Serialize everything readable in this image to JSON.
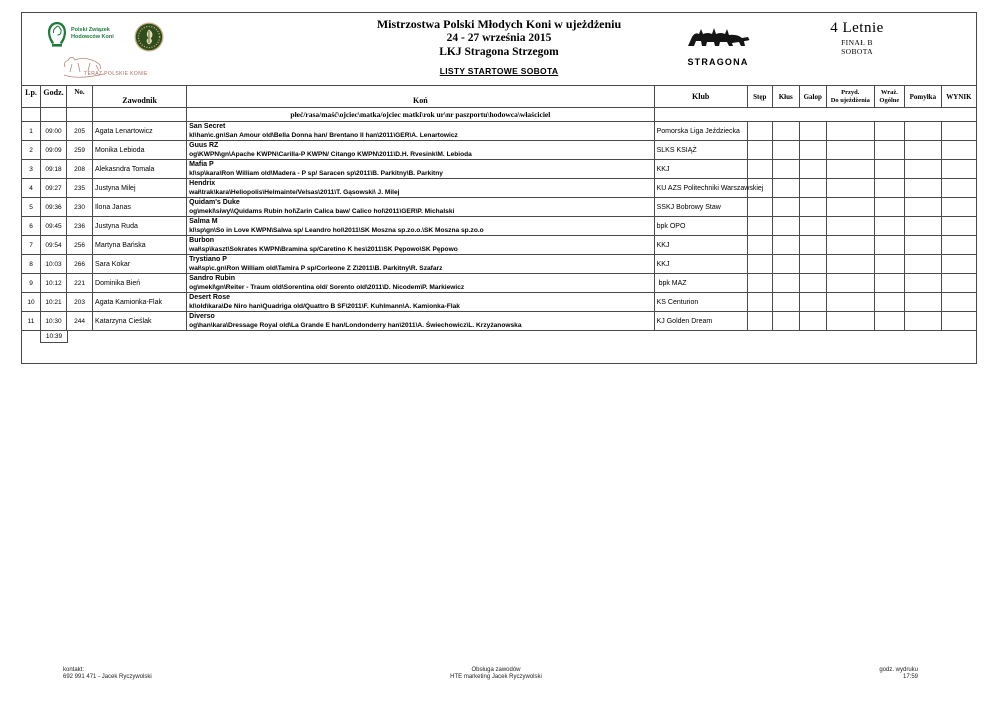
{
  "header": {
    "pzhk_line1": "Polski Związek",
    "pzhk_line2": "Hodowców Koni",
    "teraz_text": "TERAZ POLSKIE KONIE",
    "title1": "Mistrzostwa Polski Młodych Koni w ujeżdżeniu",
    "title2": "24 - 27 września 2015",
    "title3": "LKJ Stragona Strzegom",
    "subtitle": "LISTY STARTOWE SOBOTA",
    "stragona_label": "STRAGONA",
    "class_name": "4 Letnie",
    "class_final": "FINAŁ B",
    "class_day": "SOBOTA"
  },
  "icons": {
    "pzhk_logo": "pzhk-horseshoe-horse-head-logo",
    "seal_logo": "round-green-wheat-seal-logo",
    "teraz_sketch": "jumping-horse-outline-sketch",
    "stragona_logo": "stragona-horses-silhouette-logo"
  },
  "colors": {
    "border": "#4a4a4a",
    "logo_green": "#1e7b3c",
    "seal_green": "#2f4d1d",
    "seal_tan": "#c9b183",
    "sketch_brown": "#b5897b",
    "silhouette_black": "#151515"
  },
  "table": {
    "col_lp": "Lp.",
    "col_time": "Godz.",
    "col_nr": "No.",
    "col_rider": "Zawodnik",
    "col_horse": "Koń",
    "col_club": "Klub",
    "col_step": "Stęp",
    "col_klus": "Kłus",
    "col_galop": "Galop",
    "col_przyd1": "Przyd.",
    "col_przyd2": "Do ujeżdżenia",
    "col_wraz1": "Wraż.",
    "col_wraz2": "Ogólne",
    "col_pomylka": "Pomyłka",
    "col_wynik": "WYNIK",
    "horse_subheader": "płeć/rasa/maść\\ojciec\\matka/ojciec matki\\rok ur\\nr paszportu\\hodowca\\właściciel",
    "end_time": "10:39",
    "rows": [
      {
        "lp": "1",
        "time": "09:00",
        "nr": "205",
        "rider": "Agata Lenartowicz",
        "horse": "San Secret",
        "details": "kl\\han\\c.gn\\San Amour old\\Bella Donna han/ Brentano II han\\2011\\GER\\A. Lenartowicz",
        "club": "Pomorska Liga Jeździecka"
      },
      {
        "lp": "2",
        "time": "09:09",
        "nr": "259",
        "rider": "Monika Lebioda",
        "horse": "Guus RZ",
        "details": "og\\KWPN\\gn\\Apache KWPN\\Carilla-P KWPN/ Citango KWPN\\2011\\D.H. Rvesink\\M. Lebioda",
        "club": "SLKS KSIĄŻ"
      },
      {
        "lp": "3",
        "time": "09:18",
        "nr": "208",
        "rider": "Alekasndra Tomala",
        "horse": "Mafia P",
        "details": "kl\\sp\\kara\\Ron William old\\Madera - P sp/ Saracen sp\\2011\\B. Parkitny\\B. Parkitny",
        "club": "KKJ"
      },
      {
        "lp": "4",
        "time": "09:27",
        "nr": "235",
        "rider": "Justyna Milej",
        "horse": "Hendrix",
        "details": "wał\\trak\\kara\\Heliopolis\\Helmainte/Velsas\\2011\\T. Gąsowski\\ J. Milej",
        "club": "KU AZS Politechniki Warszawskiej"
      },
      {
        "lp": "5",
        "time": "09:36",
        "nr": "230",
        "rider": "Ilona Janas",
        "horse": "Quidam's Duke",
        "details": "og\\mekl\\siwy\\\\Quidams Rubin hol\\Zarin Calica baw/ Calico hol\\2011\\GER\\P. Michalski",
        "club": "SSKJ Bobrowy Staw"
      },
      {
        "lp": "6",
        "time": "09:45",
        "nr": "236",
        "rider": "Justyna Ruda",
        "horse": "Salma M",
        "details": "kl\\sp\\gn\\So in Love KWPN\\Salwa sp/ Leandro hol\\2011\\SK Moszna sp.zo.o.\\SK Moszna sp.zo.o",
        "club": "bpk OPO"
      },
      {
        "lp": "7",
        "time": "09:54",
        "nr": "256",
        "rider": "Martyna Bańska",
        "horse": "Burbon",
        "details": "wał\\sp\\kaszt\\Sokrates KWPN\\Bramina sp/Caretino K hes\\2011\\SK Pępowo\\SK Pępowo",
        "club": "KKJ"
      },
      {
        "lp": "8",
        "time": "10:03",
        "nr": "266",
        "rider": "Sara Kokar",
        "horse": "Trystiano P",
        "details": "wał\\sp\\c.gn\\Ron William old\\Tamira P sp/Corleone Z Z\\2011\\B. Parkitny\\R. Szafarz",
        "club": "KKJ"
      },
      {
        "lp": "9",
        "time": "10:12",
        "nr": "221",
        "rider": "Dominika Bień",
        "horse": "Sandro Rubin",
        "details": "og\\mekl\\gn\\Reiter - Traum old\\Sorentina old/ Sorento old\\2011\\D. Nicodem\\P. Markiewicz",
        "club": " bpk MAZ"
      },
      {
        "lp": "10",
        "time": "10:21",
        "nr": "203",
        "rider": "Agata Kamionka-Flak",
        "horse": "Desert Rose",
        "details": "kl\\old\\kara\\De Niro han\\Quadriga old/Quattro B SF\\2011\\F. Kuhlmann\\A. Kamionka-Flak",
        "club": "KS Centurion"
      },
      {
        "lp": "11",
        "time": "10:30",
        "nr": "244",
        "rider": "Katarzyna Cieślak",
        "horse": "Diverso",
        "details": "og\\han\\kara\\Dressage Royal old\\La Grande E han/Londonderry han\\2011\\A. Świechowicz\\L. Krzyżanowska",
        "club": "KJ Golden Dream"
      }
    ]
  },
  "footer": {
    "contact_label": "kontakt:",
    "contact_value": "692 991 471 - Jacek Ryczywolski",
    "service_label": "Obsługa zawodów",
    "service_value": "HTE marketing Jacek Ryczywolski",
    "print_label": "godz. wydruku",
    "print_time": "17:59"
  }
}
